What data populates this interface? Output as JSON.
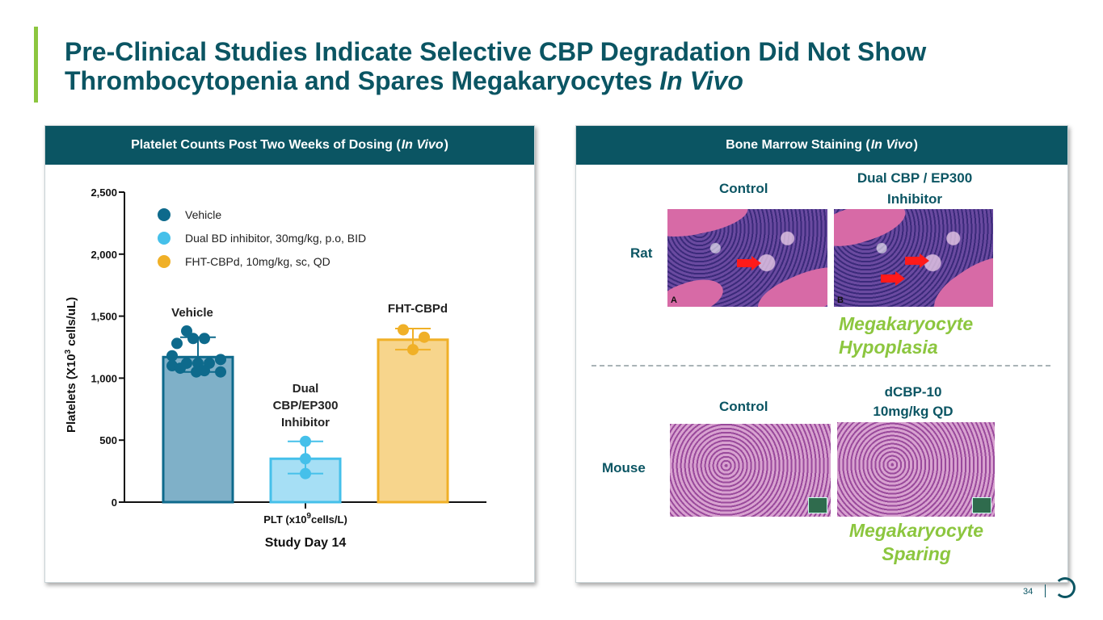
{
  "slide": {
    "title_line1": "Pre-Clinical Studies Indicate Selective CBP Degradation Did Not Show",
    "title_line2_plain": "Thrombocytopenia and Spares Megakaryocytes ",
    "title_line2_italic": "In Vivo",
    "page_number": "34"
  },
  "left_panel": {
    "header_pre": "Platelet Counts Post Two Weeks of Dosing (",
    "header_italic": "In Vivo",
    "header_post": ")"
  },
  "right_panel": {
    "header_pre": "Bone Marrow Staining (",
    "header_italic": "In Vivo",
    "header_post": ")",
    "rat": {
      "row_label": "Rat",
      "control_label": "Control",
      "treated_label_line1": "Dual CBP / EP300",
      "treated_label_line2": "Inhibitor",
      "image_a_letter": "A",
      "image_b_letter": "B",
      "finding_line1": "Megakaryocyte",
      "finding_line2": "Hypoplasia"
    },
    "mouse": {
      "row_label": "Mouse",
      "control_label": "Control",
      "treated_label_line1": "dCBP-10",
      "treated_label_line2": "10mg/kg QD",
      "finding_line1": "Megakaryocyte",
      "finding_line2": "Sparing"
    }
  },
  "colors": {
    "brand_teal": "#0b5563",
    "accent_green": "#8cc63f",
    "vehicle": "#0e6a8c",
    "dual": "#45c0ea",
    "fht": "#f0b027"
  },
  "chart_data": {
    "type": "bar",
    "ylabel_pre": "Platelets  (X10",
    "ylabel_sup": "3",
    "ylabel_post": " cells/uL)",
    "xlabel_pre": "PLT (x10",
    "xlabel_sup": "9",
    "xlabel_post": "cells/L)",
    "xlabel_line2": "Study Day 14",
    "ylim": [
      0,
      2500
    ],
    "yticks": [
      0,
      500,
      1000,
      1500,
      2000,
      2500
    ],
    "ytick_labels": [
      "0",
      "500",
      "1,000",
      "1,500",
      "2,000",
      "2,500"
    ],
    "legend": [
      {
        "label": "Vehicle",
        "color": "#0e6a8c"
      },
      {
        "label": "Dual BD inhibitor, 30mg/kg, p.o, BID",
        "color": "#45c0ea"
      },
      {
        "label": "FHT-CBPd, 10mg/kg, sc, QD",
        "color": "#f0b027"
      }
    ],
    "series": [
      {
        "label_lines": [
          "Vehicle"
        ],
        "value": 1170,
        "err_low": 1050,
        "err_high": 1330,
        "fill": "#7fb0c8",
        "stroke": "#0e6a8c",
        "dot": "#0e6a8c",
        "points": [
          1380,
          1320,
          1320,
          1280,
          1180,
          1150,
          1120,
          1120,
          1120,
          1100,
          1080,
          1060,
          1050,
          1050
        ]
      },
      {
        "label_lines": [
          "Dual",
          "CBP/EP300",
          "Inhibitor"
        ],
        "value": 350,
        "err_low": 230,
        "err_high": 490,
        "fill": "#a6dff5",
        "stroke": "#45c0ea",
        "dot": "#45c0ea",
        "points": [
          490,
          350,
          230
        ]
      },
      {
        "label_lines": [
          "FHT-CBPd"
        ],
        "value": 1310,
        "err_low": 1230,
        "err_high": 1400,
        "fill": "#f7d58c",
        "stroke": "#f0b027",
        "dot": "#f0b027",
        "points": [
          1390,
          1330,
          1230
        ]
      }
    ]
  }
}
